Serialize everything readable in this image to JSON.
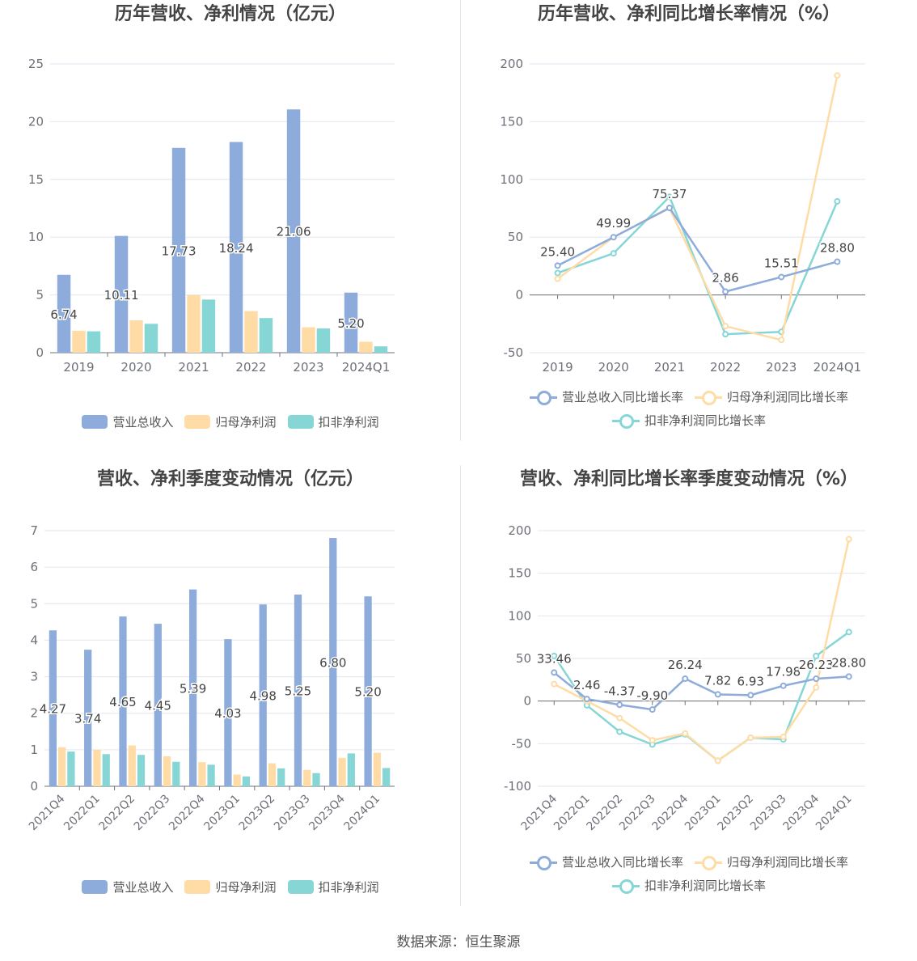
{
  "source_text": "数据来源：恒生聚源",
  "colors": {
    "series1": "#8eacdb",
    "series2": "#ffdca6",
    "series3": "#86d6d6",
    "grid": "#e3e6ef",
    "axis": "#6e7079",
    "label": "#444444"
  },
  "chart_data": [
    {
      "type": "bar",
      "title": "历年营收、净利情况（亿元）",
      "categories": [
        "2019",
        "2020",
        "2021",
        "2022",
        "2023",
        "2024Q1"
      ],
      "ylim": [
        0,
        25
      ],
      "yticks": [
        0,
        5,
        10,
        15,
        20,
        25
      ],
      "grid": true,
      "legend_position": "bottom",
      "series": [
        {
          "name": "营业总收入",
          "values": [
            6.74,
            10.11,
            17.73,
            18.24,
            21.06,
            5.2
          ],
          "labels": [
            "6.74",
            "10.11",
            "17.73",
            "18.24",
            "21.06",
            "5.20"
          ]
        },
        {
          "name": "归母净利润",
          "values": [
            1.9,
            2.8,
            5.0,
            3.6,
            2.2,
            0.95
          ]
        },
        {
          "name": "扣非净利润",
          "values": [
            1.85,
            2.5,
            4.6,
            3.0,
            2.1,
            0.55
          ]
        }
      ]
    },
    {
      "type": "line",
      "title": "历年营收、净利同比增长率情况（%）",
      "categories": [
        "2019",
        "2020",
        "2021",
        "2022",
        "2023",
        "2024Q1"
      ],
      "ylim": [
        -50,
        200
      ],
      "yticks": [
        -50,
        0,
        50,
        100,
        150,
        200
      ],
      "grid": true,
      "legend_position": "bottom",
      "series": [
        {
          "name": "营业总收入同比增长率",
          "values": [
            25.4,
            49.99,
            75.37,
            2.86,
            15.51,
            28.8
          ],
          "labels": [
            "25.40",
            "49.99",
            "75.37",
            "2.86",
            "15.51",
            "28.80"
          ]
        },
        {
          "name": "归母净利润同比增长率",
          "values": [
            14,
            50,
            75,
            -27,
            -39,
            190
          ]
        },
        {
          "name": "扣非净利润同比增长率",
          "values": [
            19,
            36,
            85,
            -34,
            -32,
            81
          ]
        }
      ]
    },
    {
      "type": "bar",
      "title": "营收、净利季度变动情况（亿元）",
      "categories": [
        "2021Q4",
        "2022Q1",
        "2022Q2",
        "2022Q3",
        "2022Q4",
        "2023Q1",
        "2023Q2",
        "2023Q3",
        "2023Q4",
        "2024Q1"
      ],
      "ylim": [
        0,
        7
      ],
      "yticks": [
        0,
        1,
        2,
        3,
        4,
        5,
        6,
        7
      ],
      "grid": true,
      "legend_position": "bottom",
      "series": [
        {
          "name": "营业总收入",
          "values": [
            4.27,
            3.74,
            4.65,
            4.45,
            5.39,
            4.03,
            4.98,
            5.25,
            6.8,
            5.2
          ],
          "labels": [
            "4.27",
            "3.74",
            "4.65",
            "4.45",
            "5.39",
            "4.03",
            "4.98",
            "5.25",
            "6.80",
            "5.20"
          ]
        },
        {
          "name": "归母净利润",
          "values": [
            1.07,
            1.0,
            1.12,
            0.82,
            0.66,
            0.32,
            0.63,
            0.45,
            0.78,
            0.92
          ]
        },
        {
          "name": "扣非净利润",
          "values": [
            0.95,
            0.88,
            0.86,
            0.67,
            0.59,
            0.27,
            0.49,
            0.36,
            0.9,
            0.5
          ]
        }
      ]
    },
    {
      "type": "line",
      "title": "营收、净利同比增长率季度变动情况（%）",
      "categories": [
        "2021Q4",
        "2022Q1",
        "2022Q2",
        "2022Q3",
        "2022Q4",
        "2023Q1",
        "2023Q2",
        "2023Q3",
        "2023Q4",
        "2024Q1"
      ],
      "ylim": [
        -100,
        200
      ],
      "yticks": [
        -100,
        -50,
        0,
        50,
        100,
        150,
        200
      ],
      "grid": true,
      "legend_position": "bottom",
      "series": [
        {
          "name": "营业总收入同比增长率",
          "values": [
            33.46,
            2.46,
            -4.37,
            -9.9,
            26.24,
            7.82,
            6.93,
            17.98,
            26.23,
            28.8
          ],
          "labels": [
            "33.46",
            "2.46",
            "-4.37",
            "-9.90",
            "26.24",
            "7.82",
            "6.93",
            "17.98",
            "26.23",
            "28.80"
          ]
        },
        {
          "name": "归母净利润同比增长率",
          "values": [
            20,
            0,
            -20,
            -46,
            -38,
            -70,
            -43,
            -42,
            16,
            190
          ]
        },
        {
          "name": "扣非净利润同比增长率",
          "values": [
            53,
            -5,
            -36,
            -51,
            -39,
            -70,
            -43,
            -45,
            53,
            81
          ]
        }
      ]
    }
  ]
}
